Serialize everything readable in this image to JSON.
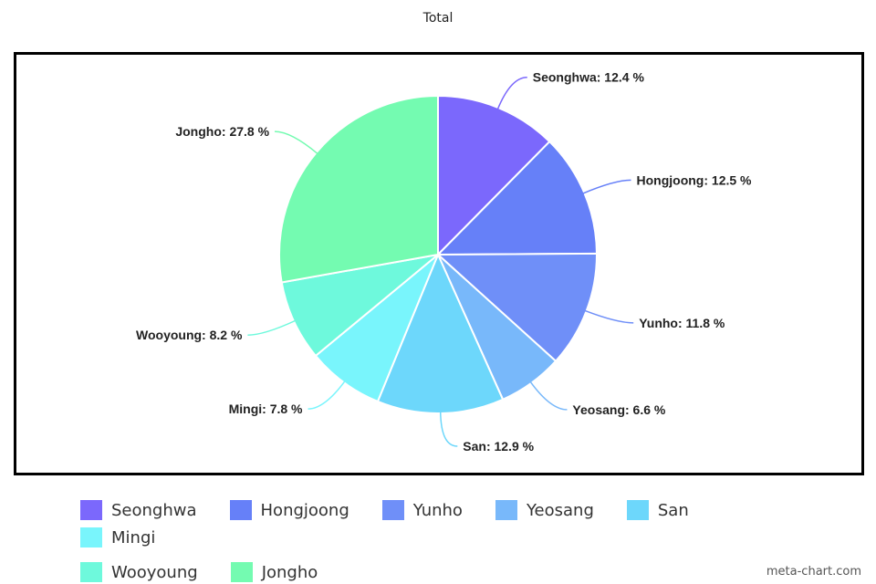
{
  "chart_data": {
    "type": "pie",
    "title": "Total",
    "categories": [
      "Seonghwa",
      "Hongjoong",
      "Yunho",
      "Yeosang",
      "San",
      "Mingi",
      "Wooyoung",
      "Jongho"
    ],
    "values": [
      12.4,
      12.5,
      11.8,
      6.6,
      12.9,
      7.8,
      8.2,
      27.8
    ],
    "unit": "%",
    "colors": [
      "#7b68fc",
      "#6680f8",
      "#6f8ff8",
      "#78b8fa",
      "#6dd7fb",
      "#79f5fc",
      "#6ef9dc",
      "#74fbb1"
    ],
    "legend": "bottom"
  },
  "watermark": "meta-chart.com"
}
